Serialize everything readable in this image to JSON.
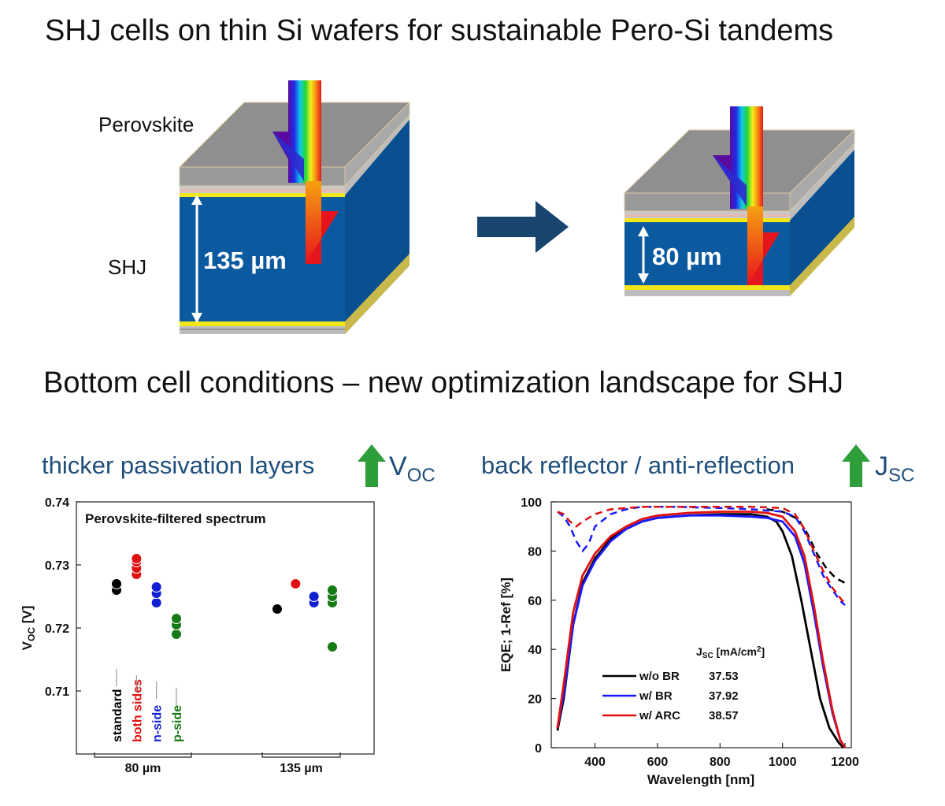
{
  "page": {
    "title": "SHJ cells on thin Si wafers for sustainable Pero-Si tandems",
    "subtitle": "Bottom cell conditions – new optimization landscape for SHJ"
  },
  "diagram": {
    "left_label_top": "Perovskite",
    "left_label_bottom": "SHJ",
    "left_thickness": "135 µm",
    "right_thickness": "80 µm",
    "colors": {
      "wafer": "#0b5aa0",
      "top_layer": "#8c8c8c",
      "arrow": "#17456e"
    }
  },
  "left_panel": {
    "heading": "thicker passivation layers",
    "quantity": "V",
    "quantity_sub": "OC",
    "arrow_color": "#2e9e3a"
  },
  "right_panel": {
    "heading": "back reflector / anti-reflection",
    "quantity": "J",
    "quantity_sub": "SC",
    "arrow_color": "#2e9e3a"
  },
  "chart_data": [
    {
      "type": "scatter",
      "title": "Perovskite-filtered spectrum",
      "ylabel": "VOC [V]",
      "ylabel_main": "V",
      "ylabel_sub": "OC",
      "ylabel_unit": " [V]",
      "ylim": [
        0.7,
        0.74
      ],
      "yticks": [
        "0.71",
        "0.72",
        "0.73",
        "0.74"
      ],
      "groups": [
        {
          "label": "80 µm",
          "categories": [
            {
              "name": "standard",
              "color": "#000000",
              "values": [
                0.726,
                0.727
              ]
            },
            {
              "name": "both sides",
              "color": "#e01010",
              "values": [
                0.7285,
                0.7295,
                0.7305,
                0.731
              ]
            },
            {
              "name": "n-side",
              "color": "#1020d0",
              "values": [
                0.724,
                0.7255,
                0.7265
              ]
            },
            {
              "name": "p-side",
              "color": "#157a15",
              "values": [
                0.719,
                0.7205,
                0.7215
              ]
            }
          ]
        },
        {
          "label": "135 µm",
          "categories": [
            {
              "name": "standard",
              "color": "#000000",
              "values": [
                0.723
              ]
            },
            {
              "name": "both sides",
              "color": "#e01010",
              "values": [
                0.727
              ]
            },
            {
              "name": "n-side",
              "color": "#1020d0",
              "values": [
                0.724,
                0.725
              ]
            },
            {
              "name": "p-side",
              "color": "#157a15",
              "values": [
                0.717,
                0.724,
                0.725,
                0.726
              ]
            }
          ]
        }
      ]
    },
    {
      "type": "line",
      "xlabel": "Wavelength [nm]",
      "ylabel": "EQE; 1-Ref [%]",
      "xlim": [
        260,
        1220
      ],
      "ylim": [
        0,
        100
      ],
      "xticks": [
        "400",
        "600",
        "800",
        "1000",
        "1200"
      ],
      "yticks": [
        "0",
        "20",
        "40",
        "60",
        "80",
        "100"
      ],
      "legend_header_main": "J",
      "legend_header_sub": "SC",
      "legend_header_unit": " [mA/cm",
      "legend_header_sup": "2",
      "legend_header_end": "]",
      "series": [
        {
          "name": "w/o BR",
          "jsc": "37.53",
          "color": "#000000",
          "eqe": [
            [
              280,
              7
            ],
            [
              300,
              20
            ],
            [
              330,
              50
            ],
            [
              360,
              67
            ],
            [
              400,
              77
            ],
            [
              450,
              85
            ],
            [
              500,
              89
            ],
            [
              550,
              92
            ],
            [
              600,
              93.5
            ],
            [
              650,
              94
            ],
            [
              700,
              94.5
            ],
            [
              800,
              95
            ],
            [
              900,
              95
            ],
            [
              950,
              94
            ],
            [
              980,
              92
            ],
            [
              1000,
              88
            ],
            [
              1030,
              78
            ],
            [
              1060,
              60
            ],
            [
              1090,
              40
            ],
            [
              1120,
              20
            ],
            [
              1150,
              8
            ],
            [
              1180,
              2
            ],
            [
              1195,
              0
            ]
          ],
          "oneminusref": [
            [
              950,
              97
            ],
            [
              1000,
              96
            ],
            [
              1050,
              93
            ],
            [
              1080,
              87
            ],
            [
              1110,
              79
            ],
            [
              1140,
              73
            ],
            [
              1170,
              69
            ],
            [
              1200,
              67
            ]
          ]
        },
        {
          "name": "w/ BR",
          "jsc": "37.92",
          "color": "#1a1aff",
          "eqe": [
            [
              280,
              8
            ],
            [
              300,
              22
            ],
            [
              330,
              50
            ],
            [
              360,
              66
            ],
            [
              400,
              76
            ],
            [
              450,
              84
            ],
            [
              500,
              89
            ],
            [
              550,
              92
            ],
            [
              600,
              93.5
            ],
            [
              650,
              94
            ],
            [
              700,
              94.5
            ],
            [
              800,
              94.5
            ],
            [
              900,
              94
            ],
            [
              950,
              93.5
            ],
            [
              1000,
              92
            ],
            [
              1040,
              86
            ],
            [
              1070,
              75
            ],
            [
              1100,
              55
            ],
            [
              1130,
              33
            ],
            [
              1160,
              14
            ],
            [
              1185,
              3
            ],
            [
              1200,
              0
            ]
          ],
          "oneminusref": [
            [
              280,
              96
            ],
            [
              300,
              94
            ],
            [
              320,
              90
            ],
            [
              340,
              84
            ],
            [
              360,
              80
            ],
            [
              380,
              83
            ],
            [
              400,
              90
            ],
            [
              450,
              95
            ],
            [
              500,
              97
            ],
            [
              550,
              98
            ],
            [
              650,
              98
            ],
            [
              800,
              97.5
            ],
            [
              900,
              97
            ],
            [
              1000,
              96
            ],
            [
              1040,
              94
            ],
            [
              1070,
              88
            ],
            [
              1100,
              79
            ],
            [
              1130,
              70
            ],
            [
              1160,
              64
            ],
            [
              1190,
              59
            ],
            [
              1200,
              58
            ]
          ]
        },
        {
          "name": "w/ ARC",
          "jsc": "38.57",
          "color": "#e01010",
          "eqe": [
            [
              280,
              8
            ],
            [
              300,
              26
            ],
            [
              330,
              55
            ],
            [
              360,
              70
            ],
            [
              400,
              79
            ],
            [
              450,
              86
            ],
            [
              500,
              90
            ],
            [
              550,
              93
            ],
            [
              600,
              94.5
            ],
            [
              650,
              95
            ],
            [
              700,
              95.5
            ],
            [
              800,
              96
            ],
            [
              900,
              96
            ],
            [
              950,
              95.5
            ],
            [
              1000,
              94
            ],
            [
              1040,
              88
            ],
            [
              1070,
              78
            ],
            [
              1100,
              58
            ],
            [
              1130,
              35
            ],
            [
              1160,
              15
            ],
            [
              1185,
              3
            ],
            [
              1200,
              0
            ]
          ],
          "oneminusref": [
            [
              280,
              96
            ],
            [
              300,
              95
            ],
            [
              320,
              92
            ],
            [
              340,
              90
            ],
            [
              360,
              92
            ],
            [
              400,
              95
            ],
            [
              450,
              97
            ],
            [
              500,
              97.5
            ],
            [
              550,
              98
            ],
            [
              650,
              98
            ],
            [
              800,
              98
            ],
            [
              900,
              98
            ],
            [
              1000,
              97.5
            ],
            [
              1040,
              95
            ],
            [
              1070,
              89
            ],
            [
              1100,
              80
            ],
            [
              1130,
              72
            ],
            [
              1160,
              65
            ],
            [
              1190,
              60
            ],
            [
              1200,
              59
            ]
          ]
        }
      ]
    }
  ]
}
